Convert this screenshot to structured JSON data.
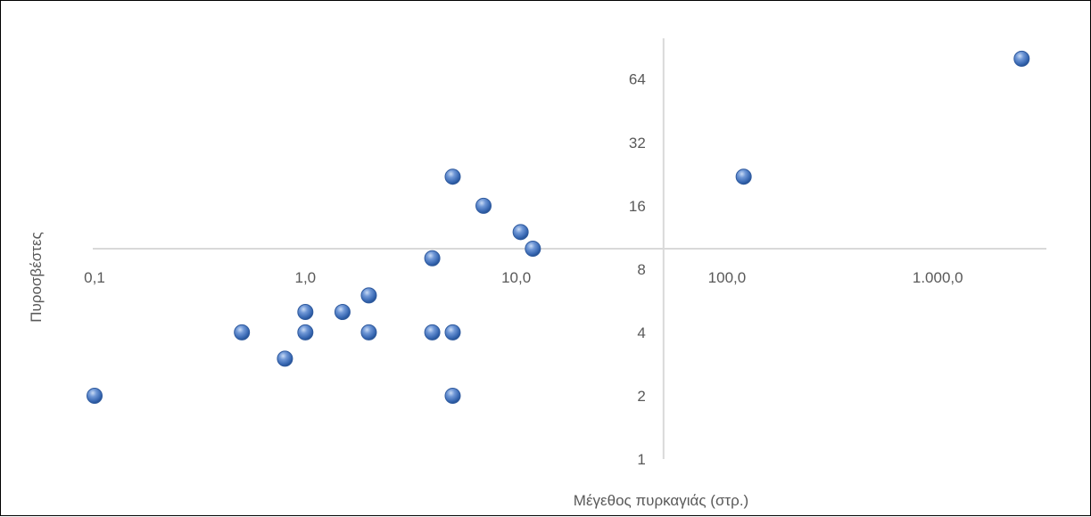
{
  "chart_data": {
    "type": "scatter",
    "title": "",
    "xlabel": "Μέγεθος πυρκαγιάς (στρ.)",
    "ylabel": "Πυροσβέστες",
    "x_scale": "log10",
    "y_scale": "log2",
    "xlim": [
      0.1,
      3000
    ],
    "ylim": [
      1,
      100
    ],
    "x_axis_crosses_at_y": 10,
    "y_axis_crosses_at_x": 50,
    "x_ticks": [
      0.1,
      1,
      10,
      100,
      1000
    ],
    "x_tick_labels": [
      "0,1",
      "1,0",
      "10,0",
      "100,0",
      "1.000,0"
    ],
    "y_ticks": [
      1,
      2,
      4,
      8,
      16,
      32,
      64
    ],
    "y_tick_labels": [
      "1",
      "2",
      "4",
      "8",
      "16",
      "32",
      "64"
    ],
    "grid": false,
    "legend": "none",
    "marker_color": "#4472c4",
    "points": [
      {
        "x": 0.1,
        "y": 2
      },
      {
        "x": 0.5,
        "y": 4
      },
      {
        "x": 0.8,
        "y": 3
      },
      {
        "x": 1,
        "y": 4
      },
      {
        "x": 1,
        "y": 5
      },
      {
        "x": 1.5,
        "y": 5
      },
      {
        "x": 2,
        "y": 4
      },
      {
        "x": 2,
        "y": 6
      },
      {
        "x": 4,
        "y": 4
      },
      {
        "x": 4,
        "y": 9
      },
      {
        "x": 5,
        "y": 4
      },
      {
        "x": 5,
        "y": 2
      },
      {
        "x": 5,
        "y": 22
      },
      {
        "x": 7,
        "y": 16
      },
      {
        "x": 10.5,
        "y": 12
      },
      {
        "x": 12,
        "y": 10
      },
      {
        "x": 120,
        "y": 22
      },
      {
        "x": 2500,
        "y": 80
      }
    ]
  }
}
